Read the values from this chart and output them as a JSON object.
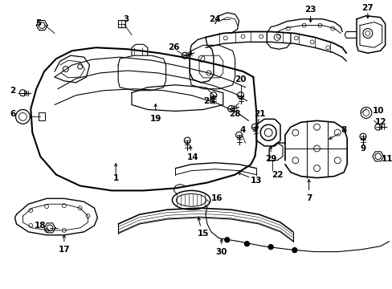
{
  "bg_color": "#ffffff",
  "line_color": "#000000",
  "fig_width": 4.89,
  "fig_height": 3.6,
  "dpi": 100,
  "xlim": [
    0,
    489
  ],
  "ylim": [
    0,
    360
  ]
}
